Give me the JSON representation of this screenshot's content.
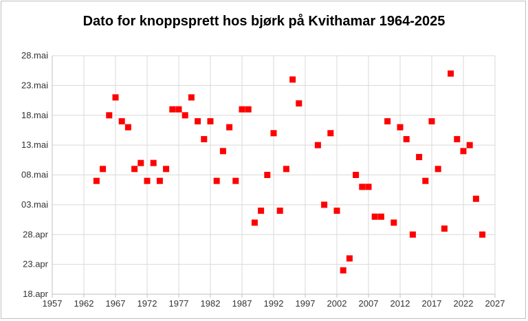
{
  "chart_data": {
    "type": "scatter",
    "title": "Dato for knoppsprett hos bjørk på Kvithamar 1964-2025",
    "xlabel": "",
    "ylabel": "",
    "xlim": [
      1957,
      2027
    ],
    "xticks": [
      1957,
      1962,
      1967,
      1972,
      1977,
      1982,
      1987,
      1992,
      1997,
      2002,
      2007,
      2012,
      2017,
      2022,
      2027
    ],
    "ylim": [
      0,
      40
    ],
    "yticks": [
      {
        "value": 0,
        "label": "18.apr"
      },
      {
        "value": 5,
        "label": "23.apr"
      },
      {
        "value": 10,
        "label": "28.apr"
      },
      {
        "value": 15,
        "label": "03.mai"
      },
      {
        "value": 20,
        "label": "08.mai"
      },
      {
        "value": 25,
        "label": "13.mai"
      },
      {
        "value": 30,
        "label": "18.mai"
      },
      {
        "value": 35,
        "label": "23.mai"
      },
      {
        "value": 40,
        "label": "28.mai"
      }
    ],
    "grid": true,
    "marker_color": "#ff0000",
    "series": [
      {
        "points": [
          [
            1964,
            19
          ],
          [
            1965,
            21
          ],
          [
            1966,
            30
          ],
          [
            1967,
            33
          ],
          [
            1968,
            29
          ],
          [
            1969,
            28
          ],
          [
            1970,
            21
          ],
          [
            1971,
            22
          ],
          [
            1972,
            19
          ],
          [
            1973,
            22
          ],
          [
            1974,
            19
          ],
          [
            1975,
            21
          ],
          [
            1976,
            31
          ],
          [
            1977,
            31
          ],
          [
            1978,
            30
          ],
          [
            1979,
            33
          ],
          [
            1980,
            29
          ],
          [
            1981,
            26
          ],
          [
            1982,
            29
          ],
          [
            1983,
            19
          ],
          [
            1984,
            24
          ],
          [
            1985,
            28
          ],
          [
            1986,
            19
          ],
          [
            1987,
            31
          ],
          [
            1988,
            31
          ],
          [
            1989,
            12
          ],
          [
            1990,
            14
          ],
          [
            1991,
            20
          ],
          [
            1992,
            27
          ],
          [
            1993,
            14
          ],
          [
            1994,
            21
          ],
          [
            1995,
            36
          ],
          [
            1996,
            32
          ],
          [
            1999,
            25
          ],
          [
            2000,
            15
          ],
          [
            2001,
            27
          ],
          [
            2002,
            14
          ],
          [
            2003,
            4
          ],
          [
            2004,
            6
          ],
          [
            2005,
            20
          ],
          [
            2006,
            18
          ],
          [
            2007,
            18
          ],
          [
            2008,
            13
          ],
          [
            2009,
            13
          ],
          [
            2010,
            29
          ],
          [
            2011,
            12
          ],
          [
            2012,
            28
          ],
          [
            2013,
            26
          ],
          [
            2014,
            10
          ],
          [
            2015,
            23
          ],
          [
            2016,
            19
          ],
          [
            2017,
            29
          ],
          [
            2018,
            21
          ],
          [
            2019,
            11
          ],
          [
            2020,
            37
          ],
          [
            2021,
            26
          ],
          [
            2022,
            24
          ],
          [
            2023,
            25
          ],
          [
            2024,
            16
          ],
          [
            2025,
            10
          ]
        ]
      }
    ]
  }
}
